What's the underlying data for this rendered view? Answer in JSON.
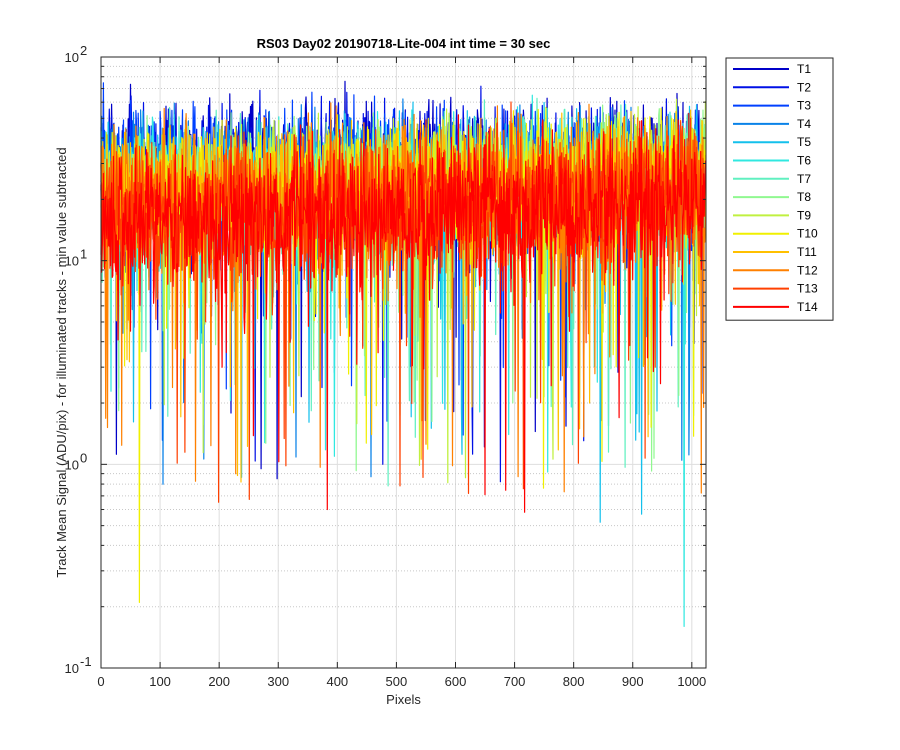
{
  "chart_data": {
    "type": "line",
    "title": "RS03 Day02 20190718-Lite-004 int time = 30 sec",
    "xlabel": "Pixels",
    "ylabel": "Track Mean Signal (ADU/pix) - for illuminated tracks - min value subtracted",
    "xlim": [
      0,
      1024
    ],
    "ylim": [
      0.1,
      100
    ],
    "yscale": "log",
    "grid": true,
    "x_ticks": [
      "0",
      "100",
      "200",
      "300",
      "400",
      "500",
      "600",
      "700",
      "800",
      "900",
      "1000"
    ],
    "y_ticks": [
      {
        "base": "10",
        "exp": "-1"
      },
      {
        "base": "10",
        "exp": "0"
      },
      {
        "base": "10",
        "exp": "1"
      },
      {
        "base": "10",
        "exp": "2"
      }
    ],
    "legend_position": "outside-top-right",
    "series": [
      {
        "name": "T1",
        "color": "#0000c8",
        "level": [
          30,
          28
        ],
        "spread": 0.45
      },
      {
        "name": "T2",
        "color": "#0010e6",
        "level": [
          28,
          26
        ],
        "spread": 0.45
      },
      {
        "name": "T3",
        "color": "#0040ff",
        "level": [
          27,
          25
        ],
        "spread": 0.45
      },
      {
        "name": "T4",
        "color": "#0a82e8",
        "level": [
          25,
          24
        ],
        "spread": 0.45
      },
      {
        "name": "T5",
        "color": "#14c0ec",
        "level": [
          22,
          23
        ],
        "spread": 0.5
      },
      {
        "name": "T6",
        "color": "#30e8e0",
        "level": [
          20,
          24
        ],
        "spread": 0.5
      },
      {
        "name": "T7",
        "color": "#60f0c0",
        "level": [
          20,
          25
        ],
        "spread": 0.45
      },
      {
        "name": "T8",
        "color": "#90f890",
        "level": [
          21,
          28
        ],
        "spread": 0.4
      },
      {
        "name": "T9",
        "color": "#c0f040",
        "level": [
          22,
          29
        ],
        "spread": 0.4
      },
      {
        "name": "T10",
        "color": "#f0f000",
        "level": [
          21,
          26
        ],
        "spread": 0.45
      },
      {
        "name": "T11",
        "color": "#ffc000",
        "level": [
          20,
          24
        ],
        "spread": 0.45
      },
      {
        "name": "T12",
        "color": "#ff8000",
        "level": [
          19,
          22
        ],
        "spread": 0.5
      },
      {
        "name": "T13",
        "color": "#ff4000",
        "level": [
          16,
          20
        ],
        "spread": 0.5
      },
      {
        "name": "T14",
        "color": "#ff0000",
        "level": [
          15,
          20
        ],
        "spread": 0.5
      }
    ],
    "notable_points": [
      {
        "series": "T14",
        "x": 605,
        "y": 52
      },
      {
        "series": "T14",
        "x": 383,
        "y": 0.6
      },
      {
        "series": "T10",
        "x": 65,
        "y": 0.21
      },
      {
        "series": "T12",
        "x": 228,
        "y": 0.9
      },
      {
        "series": "T1",
        "x": 298,
        "y": 0.85
      },
      {
        "series": "T6",
        "x": 987,
        "y": 0.16
      },
      {
        "series": "T5",
        "x": 915,
        "y": 0.57
      },
      {
        "series": "T5",
        "x": 845,
        "y": 0.52
      }
    ]
  }
}
